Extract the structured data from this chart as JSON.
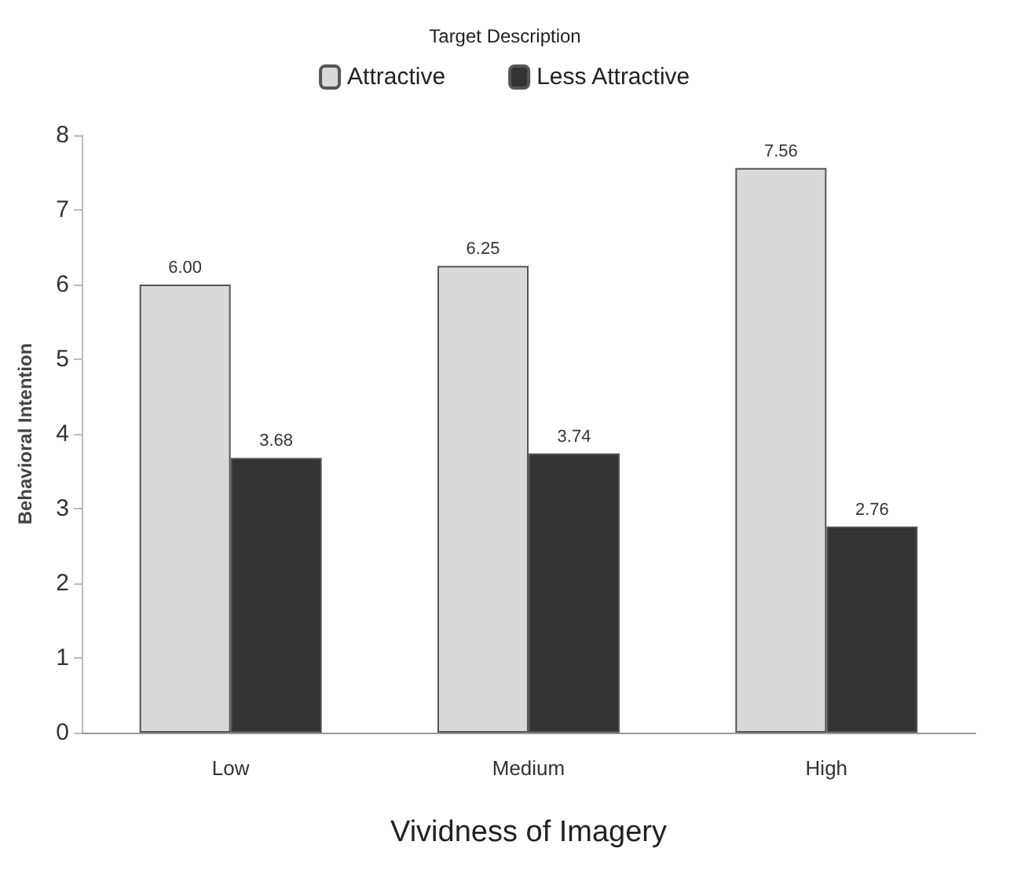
{
  "chart_data": {
    "type": "bar",
    "xlabel": "Vividness of Imagery",
    "ylabel": "Behavioral Intention",
    "legend_title": "Target Description",
    "categories": [
      "Low",
      "Medium",
      "High"
    ],
    "series": [
      {
        "name": "Attractive",
        "color": "#d9d9d9",
        "values": [
          6.0,
          6.25,
          7.56
        ],
        "value_labels": [
          "6.00",
          "6.25",
          "7.56"
        ]
      },
      {
        "name": "Less Attractive",
        "color": "#333333",
        "values": [
          3.68,
          3.74,
          2.76
        ],
        "value_labels": [
          "3.68",
          "3.74",
          "2.76"
        ]
      }
    ],
    "ylim": [
      0,
      8
    ],
    "yticks": [
      0,
      1,
      2,
      3,
      4,
      5,
      6,
      7,
      8
    ],
    "grid": false,
    "legend": "top"
  }
}
